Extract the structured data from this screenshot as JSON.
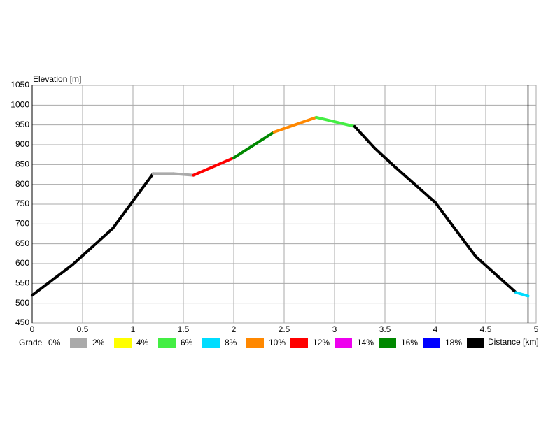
{
  "chart_data": {
    "type": "graded-line",
    "y_label": "Elevation [m]",
    "x_label": "Distance [km]",
    "x": [
      0,
      0.4,
      0.8,
      1.2,
      1.4,
      1.6,
      2.0,
      2.4,
      2.82,
      3.2,
      3.4,
      3.6,
      4.0,
      4.4,
      4.8,
      4.92
    ],
    "values": [
      520,
      597,
      689,
      827,
      827,
      823,
      867,
      932,
      969,
      946,
      891,
      844,
      754,
      618,
      527,
      518
    ],
    "segment_colors": [
      "#000000",
      "#000000",
      "#000000",
      "#aaaaaa",
      "#aaaaaa",
      "#ff0000",
      "#008800",
      "#ff8800",
      "#44ee44",
      "#000000",
      "#000000",
      "#000000",
      "#000000",
      "#000000",
      "#00ddff"
    ],
    "cursor_x": 4.92,
    "xlim": [
      0,
      5
    ],
    "ylim": [
      450,
      1050
    ],
    "xticks": [
      0,
      0.5,
      1,
      1.5,
      2,
      2.5,
      3,
      3.5,
      4,
      4.5,
      5
    ],
    "yticks": [
      450,
      500,
      550,
      600,
      650,
      700,
      750,
      800,
      850,
      900,
      950,
      1000,
      1050
    ],
    "grid": true,
    "legend": {
      "title": "Grade",
      "labels": [
        "0%",
        "2%",
        "4%",
        "6%",
        "8%",
        "10%",
        "12%",
        "14%",
        "16%",
        "18%"
      ],
      "colors": [
        "#aaaaaa",
        "#ffff00",
        "#44ee44",
        "#00ddff",
        "#ff8800",
        "#ff0000",
        "#ee00ee",
        "#008800",
        "#0000ff",
        "#000000"
      ]
    }
  }
}
